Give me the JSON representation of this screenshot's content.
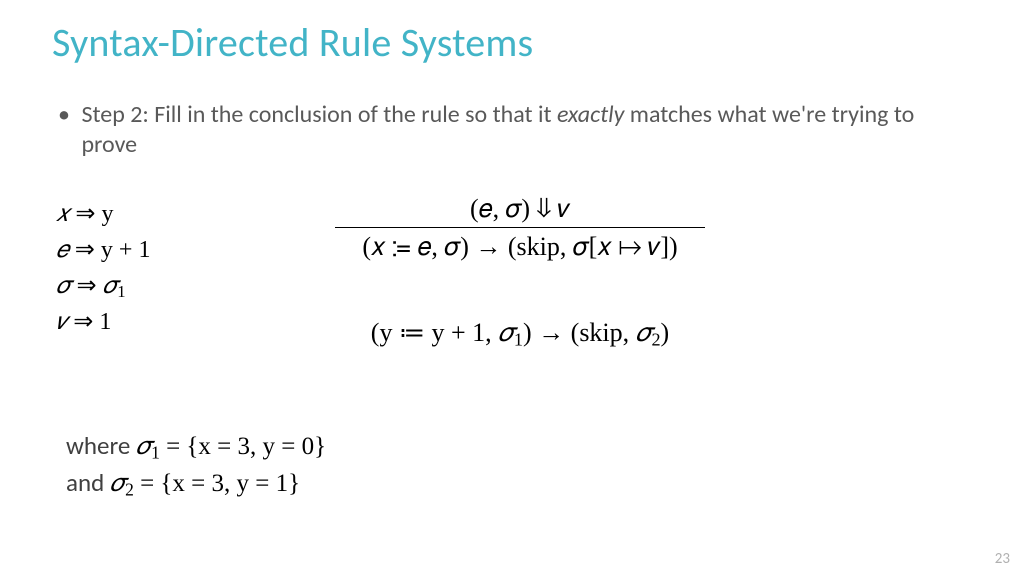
{
  "colors": {
    "title": "#42b4c7",
    "body": "#595959",
    "math": "#000000",
    "pagenum": "#b0b0b0",
    "bg": "#ffffff"
  },
  "fonts": {
    "title_size": 40,
    "body_size": 24,
    "math_size": 26,
    "pagenum_size": 15
  },
  "title": "Syntax-Directed Rule Systems",
  "bullet": {
    "prefix": "Step 2: Fill in the conclusion of the rule so that it ",
    "emph": "exactly",
    "suffix": " matches what we're trying to prove"
  },
  "substitutions": [
    {
      "lhs": "𝑥",
      "rhs": "y"
    },
    {
      "lhs": "𝑒",
      "rhs": "y + 1"
    },
    {
      "lhs": "𝜎",
      "rhs": "𝜎",
      "rhs_sub": "1"
    },
    {
      "lhs": "𝑣",
      "rhs": "1"
    }
  ],
  "rule": {
    "premise": "(𝑒, 𝜎) ⇓ 𝑣",
    "conclusion": "(𝑥 ≔ 𝑒, 𝜎) → (skip, 𝜎[𝑥 ↦ 𝑣])"
  },
  "instance": {
    "lhs_var": "y",
    "lhs_expr": "y + 1",
    "lhs_sigma_sub": "1",
    "rhs_sigma_sub": "2"
  },
  "where": {
    "line1_word": "where ",
    "line1_sigma_sub": "1",
    "line1_rest": " = {x = 3, y = 0}",
    "line2_word": "and ",
    "line2_sigma_sub": "2",
    "line2_rest": " = {x = 3, y = 1}"
  },
  "page_number": "23"
}
